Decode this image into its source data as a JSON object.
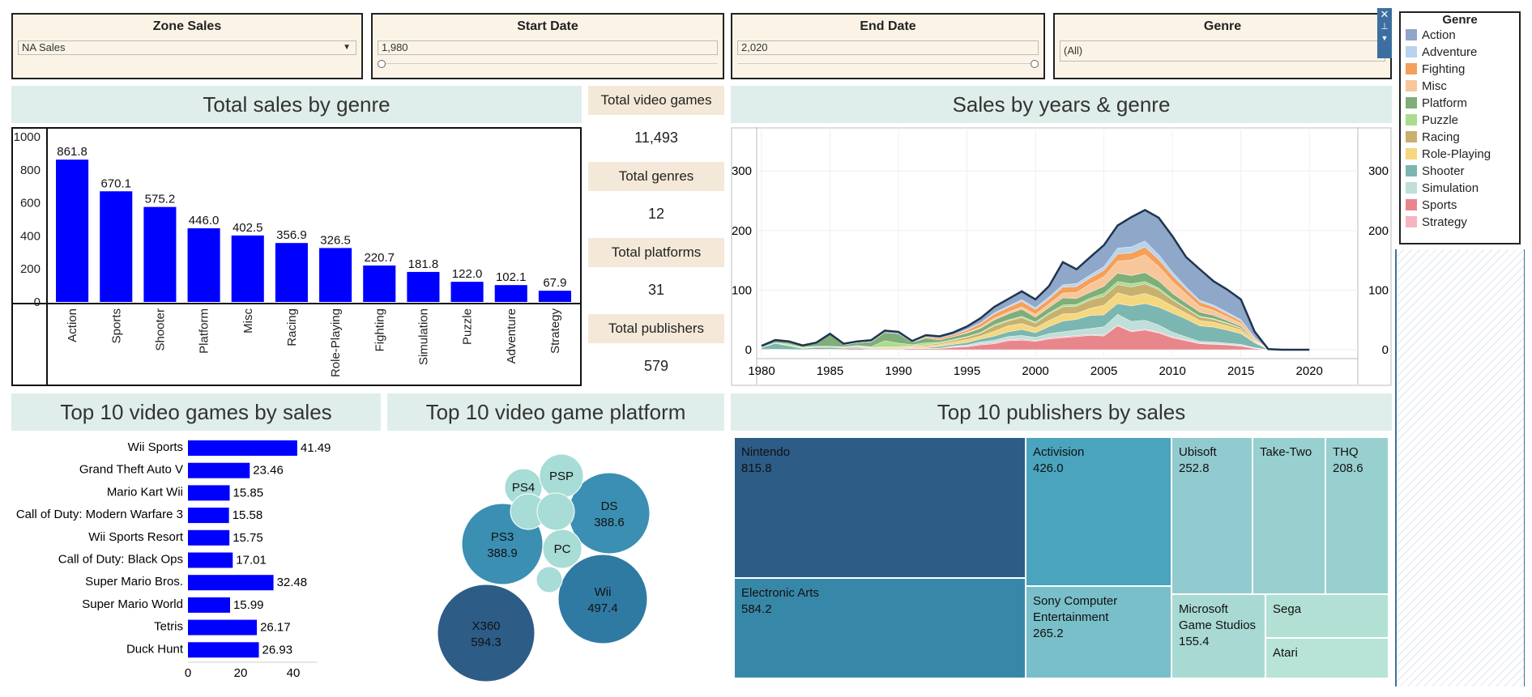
{
  "filters": {
    "zone": {
      "title": "Zone Sales",
      "value": "NA Sales"
    },
    "start": {
      "title": "Start Date",
      "value": "1,980"
    },
    "end": {
      "title": "End Date",
      "value": "2,020"
    },
    "genre": {
      "title": "Genre",
      "value": "(All)"
    }
  },
  "kpis": [
    {
      "label": "Total video games",
      "value": "11,493"
    },
    {
      "label": "Total genres",
      "value": "12"
    },
    {
      "label": "Total platforms",
      "value": "31"
    },
    {
      "label": "Total publishers",
      "value": "579"
    }
  ],
  "titles": {
    "genre_bar": "Total sales by genre",
    "area": "Sales by years & genre",
    "top_games": "Top 10 video games by sales",
    "platforms": "Top 10 video game platform",
    "publishers": "Top 10 publishers by sales"
  },
  "legend": {
    "title": "Genre"
  },
  "colors": {
    "bar": "#0000ff",
    "panel_bg": "#dfeeea",
    "kpi_bg": "#f4e9d8"
  },
  "chart_data": [
    {
      "id": "genre_bar",
      "type": "bar",
      "categories": [
        "Action",
        "Sports",
        "Shooter",
        "Platform",
        "Misc",
        "Racing",
        "Role-Playing",
        "Fighting",
        "Simulation",
        "Puzzle",
        "Adventure",
        "Strategy"
      ],
      "values": [
        861.8,
        670.1,
        575.2,
        446.0,
        402.5,
        356.9,
        326.5,
        220.7,
        181.8,
        122.0,
        102.1,
        67.9
      ],
      "labels": [
        "861.8",
        "670.1",
        "575.2",
        "446.0",
        "402.5",
        "356.9",
        "326.5",
        "220.7",
        "181.8",
        "122.0",
        "102.1",
        "67.9"
      ],
      "yticks": [
        "0",
        "200",
        "400",
        "600",
        "800",
        "1000"
      ],
      "ylim": [
        0,
        1000
      ]
    },
    {
      "id": "area",
      "type": "area",
      "stacked": true,
      "x": [
        1980,
        1981,
        1982,
        1983,
        1984,
        1985,
        1986,
        1987,
        1988,
        1989,
        1990,
        1991,
        1992,
        1993,
        1994,
        1995,
        1996,
        1997,
        1998,
        1999,
        2000,
        2001,
        2002,
        2003,
        2004,
        2005,
        2006,
        2007,
        2008,
        2009,
        2010,
        2011,
        2012,
        2013,
        2014,
        2015,
        2016,
        2017,
        2018,
        2019,
        2020
      ],
      "xticks": [
        "1980",
        "1985",
        "1990",
        "1995",
        "2000",
        "2005",
        "2010",
        "2015",
        "2020"
      ],
      "yticks": [
        "0",
        "100",
        "200",
        "300"
      ],
      "ylim": [
        0,
        360
      ],
      "series": [
        {
          "name": "Sports",
          "color": "#e8868c",
          "values": [
            0.5,
            0.8,
            0.5,
            0.2,
            1,
            0.8,
            1.5,
            2,
            1,
            1,
            1,
            2,
            2,
            2,
            4,
            5,
            8,
            10,
            15,
            16,
            14,
            18,
            20,
            22,
            24,
            23,
            40,
            30,
            33,
            28,
            20,
            15,
            10,
            9,
            8,
            6,
            2,
            0,
            0,
            0,
            0
          ]
        },
        {
          "name": "Strategy",
          "color": "#f6b4c0",
          "values": [
            0,
            0,
            0,
            0,
            0,
            0,
            0,
            0,
            0,
            0,
            0,
            0.5,
            0.5,
            0.5,
            1,
            1,
            2,
            2,
            2,
            2,
            1.5,
            2,
            2,
            2,
            1.5,
            1.5,
            1.5,
            1.5,
            1.5,
            1.5,
            1.5,
            1.5,
            1,
            1,
            1,
            1,
            0.5,
            0,
            0,
            0,
            0
          ]
        },
        {
          "name": "Simulation",
          "color": "#bfdfd8",
          "values": [
            0,
            0,
            0,
            0,
            0,
            0,
            0,
            0,
            0,
            0,
            0,
            0,
            0,
            0,
            1,
            2,
            3,
            4,
            5,
            6,
            5,
            7,
            8,
            9,
            10,
            14,
            18,
            16,
            15,
            12,
            8,
            5,
            3,
            3,
            2,
            2,
            1,
            0,
            0,
            0,
            0
          ]
        },
        {
          "name": "Shooter",
          "color": "#7cb6b0",
          "values": [
            3,
            10,
            6,
            2,
            3,
            3,
            2,
            2,
            1,
            1,
            1,
            1,
            1,
            3,
            3,
            4,
            5,
            7,
            8,
            10,
            8,
            12,
            18,
            18,
            22,
            20,
            18,
            26,
            28,
            30,
            32,
            30,
            26,
            25,
            22,
            18,
            8,
            0.5,
            0,
            0,
            0
          ]
        },
        {
          "name": "Role-Playing",
          "color": "#f5d77e",
          "values": [
            0,
            0,
            0,
            0,
            0,
            0,
            0,
            1,
            1,
            2,
            2,
            2,
            3,
            3,
            4,
            5,
            5,
            8,
            10,
            10,
            8,
            10,
            12,
            10,
            12,
            16,
            18,
            16,
            17,
            15,
            12,
            10,
            9,
            8,
            7,
            6,
            2,
            0,
            0,
            0,
            0
          ]
        },
        {
          "name": "Racing",
          "color": "#c8b06e",
          "values": [
            0.5,
            1,
            1,
            1,
            1,
            1,
            1,
            1,
            1,
            1,
            1,
            1,
            2,
            2,
            3,
            4,
            5,
            9,
            8,
            10,
            8,
            11,
            12,
            12,
            14,
            15,
            14,
            16,
            16,
            14,
            10,
            8,
            6,
            5,
            4,
            3,
            1,
            0,
            0,
            0,
            0
          ]
        },
        {
          "name": "Puzzle",
          "color": "#a9dc8f",
          "values": [
            0,
            0,
            2,
            1,
            1,
            1,
            0.5,
            1,
            1,
            10,
            6,
            2,
            3,
            2,
            1,
            1,
            1,
            2,
            2,
            2,
            2,
            2,
            3,
            3,
            3,
            5,
            5,
            5,
            4,
            3,
            2,
            1,
            1,
            1,
            1,
            0.5,
            0,
            0,
            0,
            0,
            0
          ]
        },
        {
          "name": "Platform",
          "color": "#7fae79",
          "values": [
            2,
            4,
            4,
            2,
            5,
            20,
            3,
            5,
            8,
            14,
            16,
            4,
            8,
            4,
            5,
            6,
            7,
            8,
            10,
            12,
            8,
            9,
            12,
            10,
            10,
            12,
            14,
            14,
            15,
            12,
            9,
            8,
            7,
            6,
            4,
            3,
            1,
            0,
            0,
            0,
            0
          ]
        },
        {
          "name": "Misc",
          "color": "#f8c69b",
          "values": [
            0,
            0,
            0,
            0,
            0,
            0,
            0,
            0,
            0,
            0,
            0,
            0,
            0,
            0,
            0,
            1,
            2,
            3,
            3,
            4,
            5,
            6,
            8,
            10,
            14,
            16,
            20,
            26,
            30,
            24,
            20,
            15,
            10,
            8,
            6,
            5,
            2,
            0,
            0,
            0,
            0
          ]
        },
        {
          "name": "Fighting",
          "color": "#f5a05a",
          "values": [
            0,
            0,
            0,
            0,
            0,
            0,
            0,
            0,
            0,
            0,
            0,
            0,
            2,
            3,
            3,
            4,
            6,
            7,
            8,
            9,
            8,
            8,
            10,
            10,
            10,
            11,
            12,
            12,
            13,
            12,
            10,
            8,
            7,
            6,
            5,
            4,
            2,
            0,
            0,
            0,
            0
          ]
        },
        {
          "name": "Adventure",
          "color": "#b6d4ee",
          "values": [
            0,
            0,
            0,
            0,
            0,
            0,
            0,
            0,
            0,
            0,
            0,
            0,
            0,
            0,
            0,
            1,
            1,
            2,
            2,
            3,
            3,
            4,
            4,
            5,
            5,
            6,
            10,
            10,
            10,
            8,
            6,
            4,
            3,
            3,
            3,
            2,
            1,
            0,
            0,
            0,
            0
          ]
        },
        {
          "name": "Action",
          "color": "#8fa7c9",
          "values": [
            0.5,
            0.5,
            0.5,
            1,
            1,
            1,
            2,
            2,
            3,
            3,
            3,
            2,
            3,
            3,
            4,
            5,
            8,
            10,
            12,
            14,
            14,
            18,
            38,
            24,
            30,
            36,
            38,
            50,
            52,
            62,
            60,
            50,
            52,
            40,
            38,
            34,
            10,
            0.5,
            0,
            0,
            0
          ]
        }
      ]
    },
    {
      "id": "top_games",
      "type": "bar",
      "orientation": "horizontal",
      "categories": [
        "Wii Sports",
        "Grand Theft Auto V",
        "Mario Kart Wii",
        "Call of Duty: Modern Warfare 3",
        "Wii Sports Resort",
        "Call of Duty: Black Ops",
        "Super Mario Bros.",
        "Super Mario World",
        "Tetris",
        "Duck Hunt"
      ],
      "values": [
        41.49,
        23.46,
        15.85,
        15.58,
        15.75,
        17.01,
        32.48,
        15.99,
        26.17,
        26.93
      ],
      "labels": [
        "41.49",
        "23.46",
        "15.85",
        "15.58",
        "15.75",
        "17.01",
        "32.48",
        "15.99",
        "26.17",
        "26.93"
      ],
      "xticks": [
        "0",
        "20",
        "40"
      ],
      "xlim": [
        0,
        50
      ]
    },
    {
      "id": "platforms",
      "type": "bubble",
      "items": [
        {
          "name": "X360",
          "value": 594.3,
          "label": "594.3",
          "color": "#2d5c87"
        },
        {
          "name": "Wii",
          "value": 497.4,
          "label": "497.4",
          "color": "#2f7aa3"
        },
        {
          "name": "PS3",
          "value": 388.9,
          "label": "388.9",
          "color": "#3b8fb3"
        },
        {
          "name": "DS",
          "value": 388.6,
          "label": "388.6",
          "color": "#3b8fb3"
        },
        {
          "name": "PS4",
          "value": null,
          "label": "",
          "color": "#a8dcd6"
        },
        {
          "name": "PSP",
          "value": null,
          "label": "",
          "color": "#a8dcd6"
        },
        {
          "name": "PC",
          "value": null,
          "label": "",
          "color": "#a8dcd6"
        },
        {
          "name": "",
          "value": null,
          "label": "",
          "color": "#a8dcd6"
        },
        {
          "name": "",
          "value": null,
          "label": "",
          "color": "#a8dcd6"
        },
        {
          "name": "",
          "value": null,
          "label": "",
          "color": "#a8dcd6"
        }
      ]
    },
    {
      "id": "publishers",
      "type": "treemap",
      "items": [
        {
          "name": "Nintendo",
          "value": 815.8,
          "label": "815.8",
          "color": "#2d5c87"
        },
        {
          "name": "Electronic Arts",
          "value": 584.2,
          "label": "584.2",
          "color": "#3788a8"
        },
        {
          "name": "Activision",
          "value": 426.0,
          "label": "426.0",
          "color": "#4aa4bd"
        },
        {
          "name": "Sony Computer Entertainment",
          "value": 265.2,
          "label": "265.2",
          "color": "#78bfc9"
        },
        {
          "name": "Ubisoft",
          "value": 252.8,
          "label": "252.8",
          "color": "#92cbcf"
        },
        {
          "name": "Take-Two",
          "value": null,
          "label": "",
          "color": "#98d0d0"
        },
        {
          "name": "THQ",
          "value": 208.6,
          "label": "208.6",
          "color": "#98d0d0"
        },
        {
          "name": "Microsoft Game Studios",
          "value": 155.4,
          "label": "155.4",
          "color": "#a8dad3"
        },
        {
          "name": "Sega",
          "value": null,
          "label": "",
          "color": "#b2e0d5"
        },
        {
          "name": "Atari",
          "value": null,
          "label": "",
          "color": "#b8e4d8"
        }
      ]
    }
  ]
}
